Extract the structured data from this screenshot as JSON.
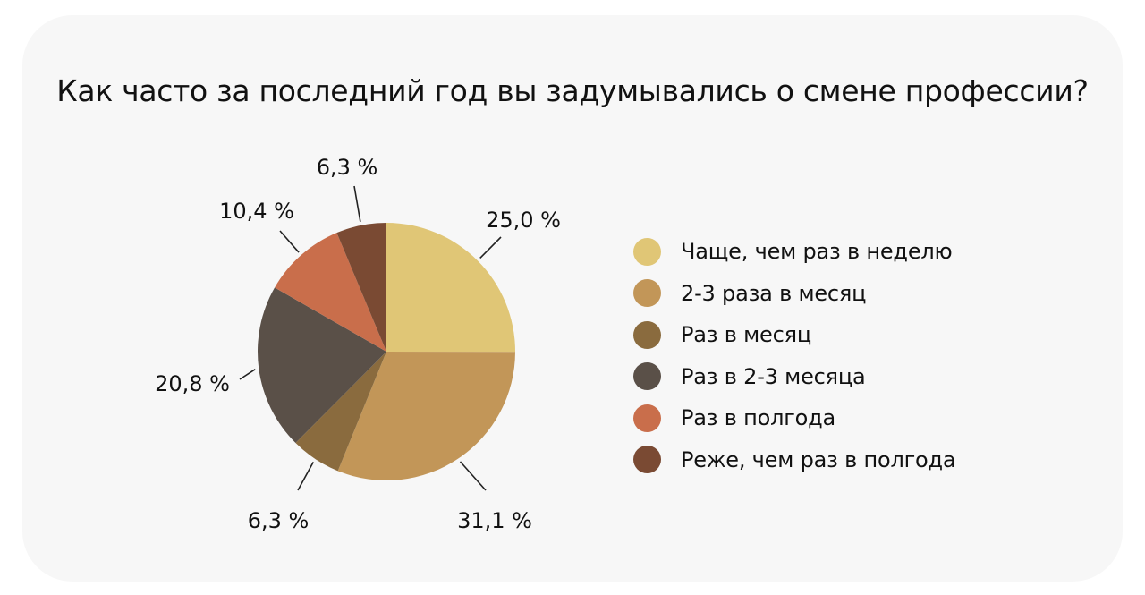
{
  "chart_data": {
    "type": "pie",
    "title": "Как часто за последний год вы задумывались о смене профессии?",
    "slices": [
      {
        "label": "Чаще, чем раз в неделю",
        "value": 25.0,
        "value_label": "25,0 %",
        "color": "#e0c676"
      },
      {
        "label": "2-3 раза в месяц",
        "value": 31.1,
        "value_label": "31,1 %",
        "color": "#c29658"
      },
      {
        "label": "Раз в месяц",
        "value": 6.3,
        "value_label": "6,3 %",
        "color": "#8a6b3e"
      },
      {
        "label": "Раз в 2-3 месяца",
        "value": 20.8,
        "value_label": "20,8 %",
        "color": "#5a5048"
      },
      {
        "label": "Раз в полгода",
        "value": 10.4,
        "value_label": "10,4 %",
        "color": "#c96e4b"
      },
      {
        "label": "Реже, чем раз в полгода",
        "value": 6.3,
        "value_label": "6,3 %",
        "color": "#7a4a33"
      }
    ],
    "legend_position": "right",
    "start_angle": "12 o'clock",
    "direction": "clockwise"
  }
}
